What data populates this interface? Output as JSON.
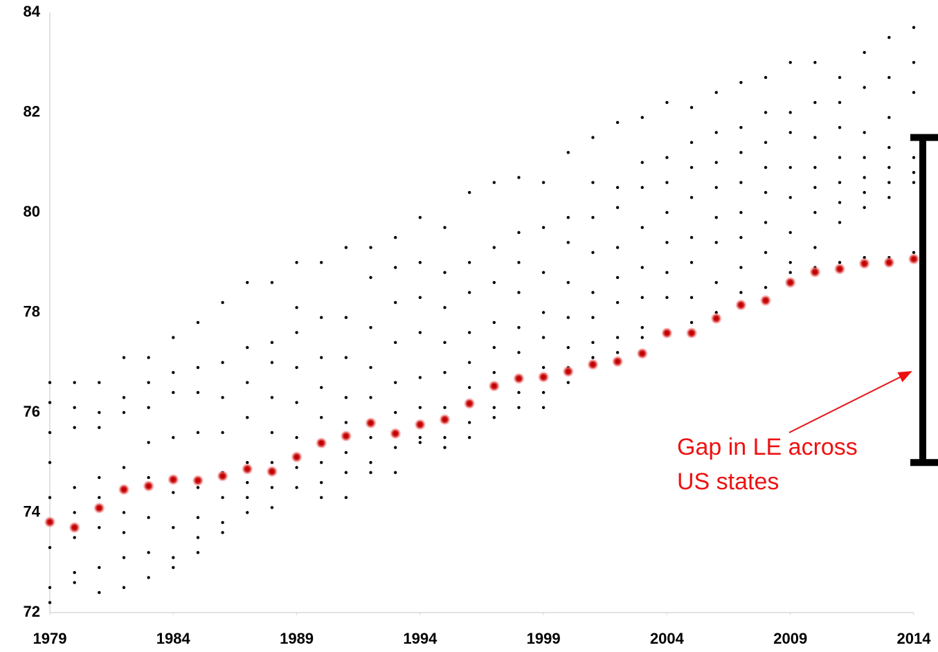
{
  "chart_data": {
    "type": "scatter",
    "xlim": [
      1979,
      2014
    ],
    "xticks": [
      1979,
      1984,
      1989,
      1994,
      1999,
      2004,
      2009,
      2014
    ],
    "ylim": [
      72,
      84
    ],
    "yticks": [
      72,
      74,
      76,
      78,
      80,
      82,
      84
    ],
    "grid": false,
    "series": [
      {
        "color": "#000000",
        "x": [
          1979,
          1979,
          1979,
          1979,
          1979,
          1979,
          1979,
          1979,
          1980,
          1980,
          1980,
          1980,
          1980,
          1980,
          1980,
          1980,
          1981,
          1981,
          1981,
          1981,
          1981,
          1981,
          1981,
          1981,
          1982,
          1982,
          1982,
          1982,
          1982,
          1982,
          1982,
          1982,
          1983,
          1983,
          1983,
          1983,
          1983,
          1983,
          1983,
          1983,
          1984,
          1984,
          1984,
          1984,
          1984,
          1984,
          1984,
          1984,
          1985,
          1985,
          1985,
          1985,
          1985,
          1985,
          1985,
          1985,
          1986,
          1986,
          1986,
          1986,
          1986,
          1986,
          1986,
          1986,
          1987,
          1987,
          1987,
          1987,
          1987,
          1987,
          1987,
          1987,
          1988,
          1988,
          1988,
          1988,
          1988,
          1988,
          1988,
          1988,
          1989,
          1989,
          1989,
          1989,
          1989,
          1989,
          1989,
          1989,
          1990,
          1990,
          1990,
          1990,
          1990,
          1990,
          1990,
          1990,
          1991,
          1991,
          1991,
          1991,
          1991,
          1991,
          1991,
          1991,
          1992,
          1992,
          1992,
          1992,
          1992,
          1992,
          1992,
          1992,
          1993,
          1993,
          1993,
          1993,
          1993,
          1993,
          1993,
          1993,
          1994,
          1994,
          1994,
          1994,
          1994,
          1994,
          1994,
          1994,
          1995,
          1995,
          1995,
          1995,
          1995,
          1995,
          1995,
          1995,
          1996,
          1996,
          1996,
          1996,
          1996,
          1996,
          1996,
          1996,
          1997,
          1997,
          1997,
          1997,
          1997,
          1997,
          1997,
          1997,
          1998,
          1998,
          1998,
          1998,
          1998,
          1998,
          1998,
          1998,
          1999,
          1999,
          1999,
          1999,
          1999,
          1999,
          1999,
          1999,
          2000,
          2000,
          2000,
          2000,
          2000,
          2000,
          2000,
          2000,
          2001,
          2001,
          2001,
          2001,
          2001,
          2001,
          2001,
          2001,
          2002,
          2002,
          2002,
          2002,
          2002,
          2002,
          2002,
          2002,
          2003,
          2003,
          2003,
          2003,
          2003,
          2003,
          2003,
          2003,
          2004,
          2004,
          2004,
          2004,
          2004,
          2004,
          2004,
          2004,
          2005,
          2005,
          2005,
          2005,
          2005,
          2005,
          2005,
          2005,
          2006,
          2006,
          2006,
          2006,
          2006,
          2006,
          2006,
          2006,
          2007,
          2007,
          2007,
          2007,
          2007,
          2007,
          2007,
          2007,
          2008,
          2008,
          2008,
          2008,
          2008,
          2008,
          2008,
          2008,
          2009,
          2009,
          2009,
          2009,
          2009,
          2009,
          2009,
          2009,
          2010,
          2010,
          2010,
          2010,
          2010,
          2010,
          2010,
          2010,
          2011,
          2011,
          2011,
          2011,
          2011,
          2011,
          2011,
          2011,
          2012,
          2012,
          2012,
          2012,
          2012,
          2012,
          2012,
          2012,
          2013,
          2013,
          2013,
          2013,
          2013,
          2013,
          2013,
          2013,
          2014,
          2014,
          2014,
          2014,
          2014,
          2014,
          2014,
          2014
        ],
        "values": [
          76.6,
          76.2,
          75.6,
          75.0,
          74.3,
          73.3,
          72.5,
          72.2,
          76.6,
          76.1,
          75.7,
          74.5,
          74.0,
          73.5,
          72.8,
          72.6,
          76.6,
          76.0,
          75.7,
          74.7,
          74.3,
          73.7,
          72.9,
          72.4,
          77.1,
          76.3,
          76.0,
          74.9,
          74.0,
          73.6,
          73.1,
          72.5,
          77.1,
          76.6,
          76.1,
          75.4,
          74.7,
          73.9,
          73.2,
          72.7,
          77.5,
          76.8,
          76.4,
          75.5,
          74.4,
          73.7,
          73.1,
          72.9,
          77.8,
          76.9,
          76.4,
          75.6,
          74.5,
          73.9,
          73.5,
          73.2,
          78.2,
          77.0,
          76.3,
          75.6,
          74.8,
          74.3,
          73.8,
          73.6,
          78.6,
          77.3,
          76.6,
          75.9,
          75.0,
          74.6,
          74.3,
          74.0,
          78.6,
          77.4,
          77.0,
          76.3,
          75.6,
          75.0,
          74.5,
          74.1,
          79.0,
          78.1,
          77.6,
          76.9,
          76.2,
          75.5,
          74.9,
          74.5,
          79.0,
          77.9,
          77.1,
          76.5,
          75.9,
          75.0,
          74.6,
          74.3,
          79.3,
          77.9,
          77.1,
          76.3,
          75.8,
          75.2,
          74.8,
          74.3,
          79.3,
          78.7,
          77.7,
          76.9,
          76.3,
          75.5,
          75.0,
          74.8,
          79.5,
          78.9,
          78.2,
          77.4,
          76.6,
          76.0,
          75.3,
          74.8,
          79.9,
          79.0,
          78.3,
          77.6,
          76.7,
          76.1,
          75.5,
          75.4,
          79.7,
          78.8,
          78.1,
          77.4,
          76.8,
          76.1,
          75.5,
          75.3,
          80.4,
          79.0,
          78.4,
          77.6,
          77.0,
          76.5,
          75.8,
          75.5,
          80.6,
          79.3,
          78.6,
          77.8,
          77.3,
          76.8,
          76.1,
          75.9,
          80.7,
          79.6,
          79.0,
          78.4,
          77.7,
          77.2,
          76.4,
          76.1,
          80.6,
          79.7,
          78.8,
          78.0,
          77.5,
          76.9,
          76.4,
          76.1,
          81.2,
          79.9,
          79.4,
          78.6,
          77.9,
          77.3,
          76.9,
          76.6,
          81.5,
          80.6,
          79.9,
          79.2,
          78.4,
          77.9,
          77.4,
          77.1,
          81.8,
          80.5,
          80.1,
          79.3,
          78.7,
          78.2,
          77.5,
          77.2,
          81.9,
          81.0,
          80.5,
          79.7,
          78.9,
          78.3,
          77.7,
          77.5,
          82.2,
          81.1,
          80.6,
          80.0,
          79.4,
          78.8,
          78.3,
          77.6,
          82.1,
          81.4,
          80.9,
          80.3,
          79.5,
          79.0,
          78.3,
          77.8,
          82.4,
          81.6,
          81.0,
          80.5,
          79.9,
          79.4,
          78.6,
          78.0,
          82.6,
          81.7,
          81.2,
          80.6,
          80.0,
          79.5,
          78.9,
          78.4,
          82.7,
          82.0,
          81.4,
          80.9,
          80.4,
          79.8,
          79.2,
          78.5,
          83.0,
          82.0,
          81.6,
          80.9,
          80.3,
          79.6,
          79.0,
          78.8,
          83.0,
          82.2,
          81.5,
          80.9,
          80.5,
          80.0,
          79.3,
          78.9,
          82.7,
          82.2,
          81.7,
          81.1,
          80.6,
          80.2,
          79.8,
          79.0,
          83.2,
          82.5,
          81.6,
          81.1,
          80.7,
          80.4,
          80.1,
          79.1,
          83.5,
          82.7,
          81.9,
          81.3,
          80.9,
          80.6,
          80.3,
          79.1,
          83.7,
          83.0,
          82.4,
          81.5,
          81.1,
          80.8,
          80.6,
          79.2
        ]
      },
      {
        "color": "#c00000",
        "x": [
          1979,
          1980,
          1981,
          1982,
          1983,
          1984,
          1985,
          1986,
          1987,
          1988,
          1989,
          1990,
          1991,
          1992,
          1993,
          1994,
          1995,
          1996,
          1997,
          1998,
          1999,
          2000,
          2001,
          2002,
          2003,
          2004,
          2005,
          2006,
          2007,
          2008,
          2009,
          2010,
          2011,
          2012,
          2013,
          2014
        ],
        "values": [
          73.81,
          73.7,
          74.09,
          74.46,
          74.53,
          74.66,
          74.64,
          74.73,
          74.87,
          74.82,
          75.11,
          75.39,
          75.53,
          75.79,
          75.58,
          75.76,
          75.86,
          76.18,
          76.53,
          76.68,
          76.71,
          76.82,
          76.96,
          77.02,
          77.18,
          77.59,
          77.59,
          77.88,
          78.15,
          78.24,
          78.6,
          78.81,
          78.87,
          78.98,
          79.0,
          79.07
        ]
      }
    ],
    "annotation": {
      "text": [
        "Gap in LE across",
        "US states"
      ],
      "color": "#ee1111",
      "range": [
        75.0,
        81.5
      ]
    }
  }
}
